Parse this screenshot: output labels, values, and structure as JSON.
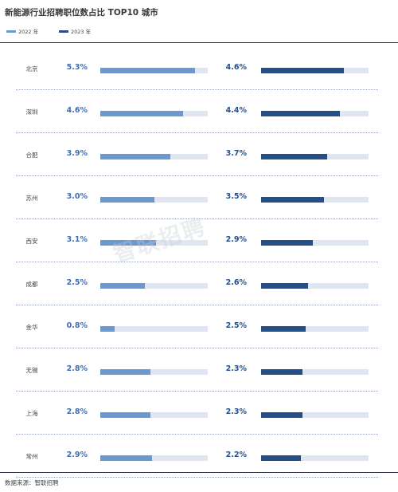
{
  "title": "新能源行业招聘职位数占比 TOP10 城市",
  "legend": [
    {
      "label": "2022 年",
      "color": "#6a98cf"
    },
    {
      "label": "2023 年",
      "color": "#244e8a"
    }
  ],
  "colors": {
    "series_2022": "#6a98cf",
    "series_2023": "#244e8a",
    "value_text_2022": "#3f6eb1",
    "value_text_2023": "#244e8a",
    "track": "#dfe5f1"
  },
  "watermark": "智联招聘",
  "source": "数据来源：智联招聘",
  "chart_data": {
    "type": "bar",
    "title": "新能源行业招聘职位数占比 TOP10 城市",
    "categories": [
      "北京",
      "深圳",
      "合肥",
      "苏州",
      "西安",
      "成都",
      "金华",
      "无锡",
      "上海",
      "常州"
    ],
    "value_labels": {
      "2022 年": [
        "5.3%",
        "4.6%",
        "3.9%",
        "3.0%",
        "3.1%",
        "2.5%",
        "0.8%",
        "2.8%",
        "2.8%",
        "2.9%"
      ],
      "2023 年": [
        "4.6%",
        "4.4%",
        "3.7%",
        "3.5%",
        "2.9%",
        "2.6%",
        "2.5%",
        "2.3%",
        "2.3%",
        "2.2%"
      ]
    },
    "series": [
      {
        "name": "2022 年",
        "values": [
          5.3,
          4.6,
          3.9,
          3.0,
          3.1,
          2.5,
          0.8,
          2.8,
          2.8,
          2.9
        ]
      },
      {
        "name": "2023 年",
        "values": [
          4.6,
          4.4,
          3.7,
          3.5,
          2.9,
          2.6,
          2.5,
          2.3,
          2.3,
          2.2
        ]
      }
    ],
    "ylim": [
      0,
      6
    ],
    "legend_position": "top-left",
    "grid": false
  }
}
